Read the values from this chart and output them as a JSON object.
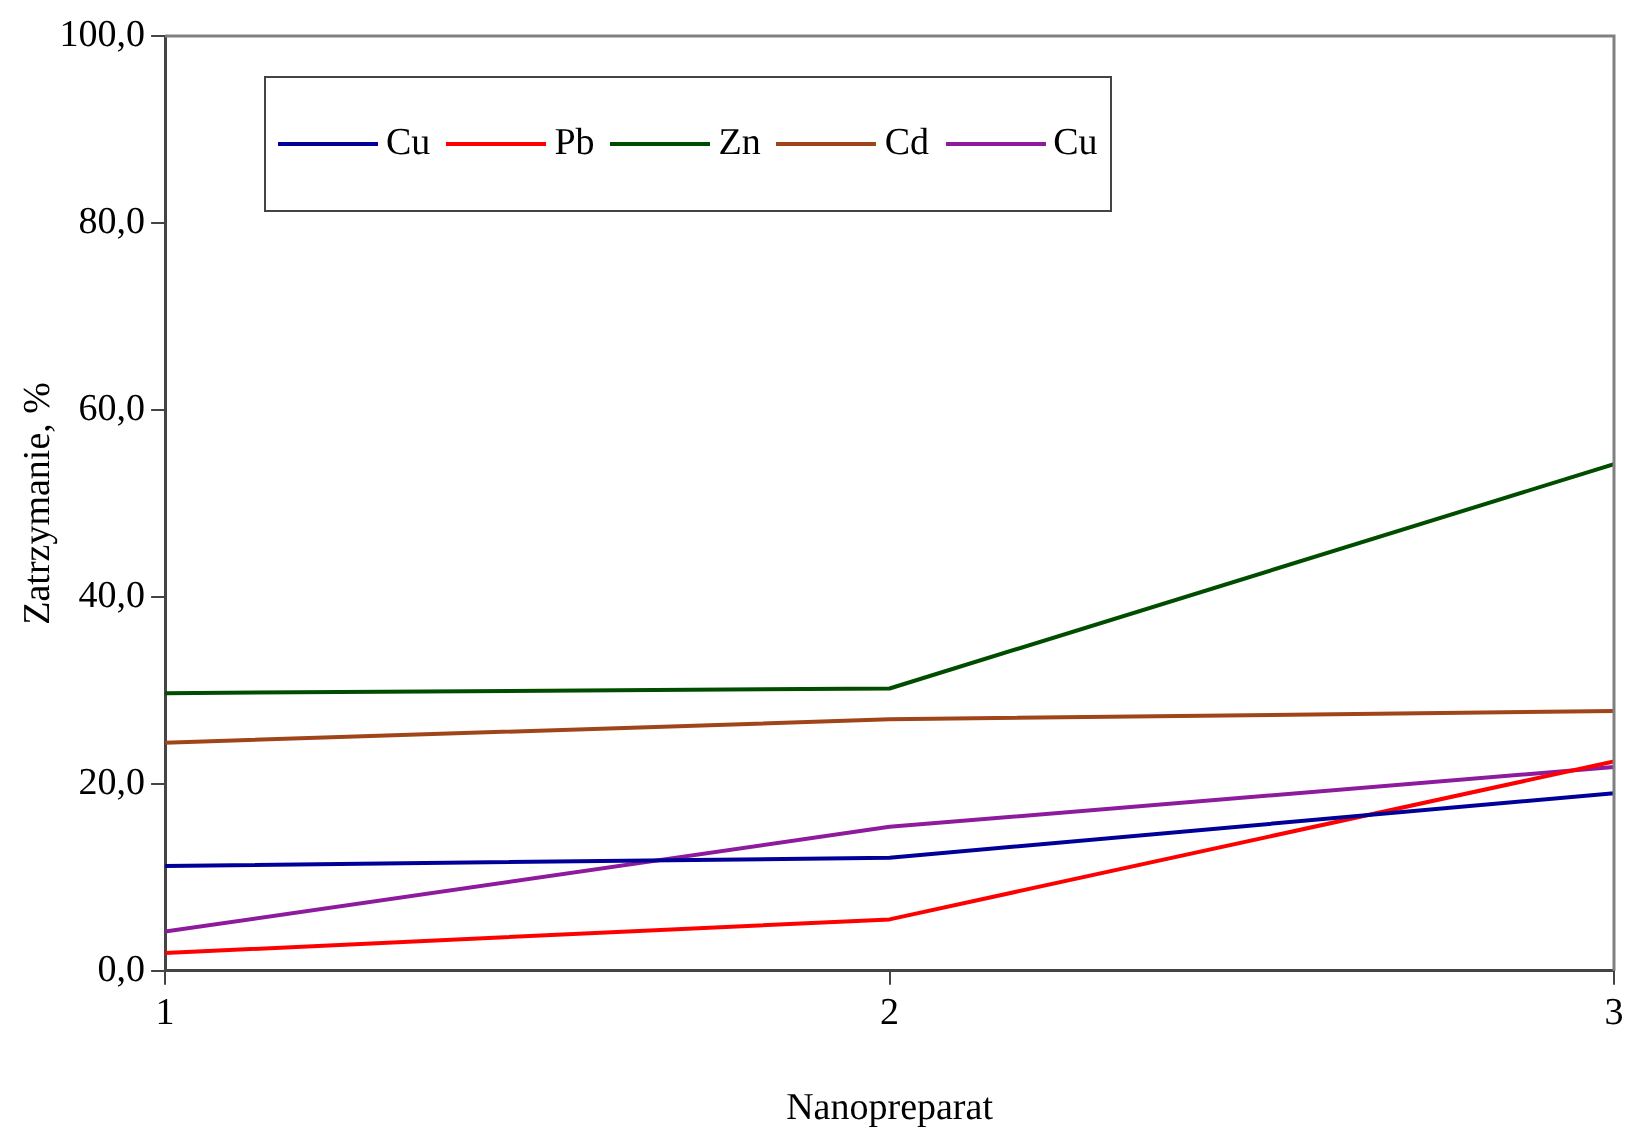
{
  "chart_data": {
    "type": "line",
    "xlabel": "Nanopreparat",
    "ylabel": "Zatrzymanie, %",
    "x": [
      1,
      2,
      3
    ],
    "xlim": [
      1,
      3
    ],
    "xticks": [
      1,
      2,
      3
    ],
    "ylim": [
      0,
      100
    ],
    "yticks": [
      {
        "value": 0,
        "label": "0,0"
      },
      {
        "value": 20,
        "label": "20,0"
      },
      {
        "value": 40,
        "label": "40,0"
      },
      {
        "value": 60,
        "label": "60,0"
      },
      {
        "value": 80,
        "label": "80,0"
      },
      {
        "value": 100,
        "label": "100,0"
      }
    ],
    "grid": false,
    "legend": "top left",
    "marker": "none",
    "line_style": "solid",
    "series": [
      {
        "name": "Cu",
        "color": "#000099",
        "values": [
          11.2,
          12.1,
          19.0
        ]
      },
      {
        "name": "Pb",
        "color": "#ff0000",
        "values": [
          1.9,
          5.5,
          22.4
        ]
      },
      {
        "name": "Zn",
        "color": "#004d00",
        "values": [
          29.7,
          30.2,
          54.2
        ]
      },
      {
        "name": "Cd",
        "color": "#a0441a",
        "values": [
          24.4,
          26.9,
          27.8
        ]
      },
      {
        "name": "Cu",
        "color": "#8e1a9e",
        "values": [
          4.2,
          15.4,
          21.8
        ]
      }
    ]
  }
}
